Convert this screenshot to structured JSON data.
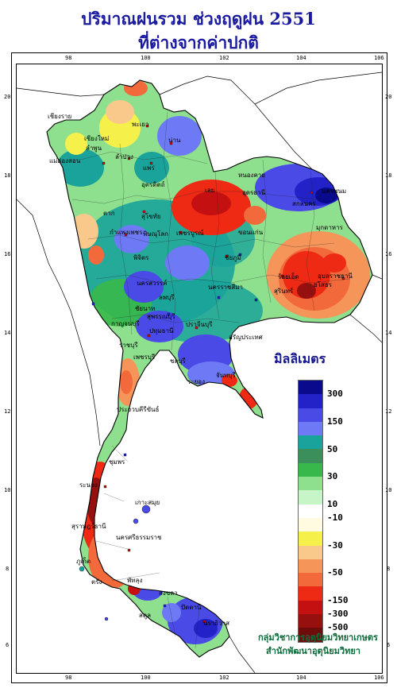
{
  "title": {
    "line1": "ปริมาณฝนรวม ช่วงฤดูฝน 2551",
    "line2": "ที่ต่างจากค่าปกติ"
  },
  "axes": {
    "lon_ticks": [
      "98",
      "100",
      "102",
      "104",
      "106"
    ],
    "lat_ticks": [
      "20",
      "18",
      "16",
      "14",
      "12",
      "10",
      "8",
      "6"
    ]
  },
  "legend": {
    "title": "มิลลิเมตร",
    "labels": [
      "300",
      "150",
      "50",
      "30",
      "10",
      "-10",
      "-30",
      "-50",
      "-150",
      "-300",
      "-500"
    ],
    "colors": [
      "#0a0a8c",
      "#2222c8",
      "#4a4ae6",
      "#6e7af5",
      "#1aa39a",
      "#3a8f5a",
      "#38b84a",
      "#8ee08e",
      "#c8f5c8",
      "#ffffff",
      "#fffbe0",
      "#f5f04a",
      "#f9c98c",
      "#f5955a",
      "#f26a3c",
      "#ee2a14",
      "#c41010",
      "#961010",
      "#6e0c0c"
    ]
  },
  "places": [
    "เชียงราย",
    "แม่ฮ่องสอน",
    "พะเยา",
    "เชียงใหม่",
    "ลำพูน",
    "น่าน",
    "ลำปาง",
    "แพร่",
    "อุตรดิตถ์",
    "ตาก",
    "สุโขทัย",
    "หนองคาย",
    "นครพนม",
    "สกลนคร",
    "มุกดาหาร",
    "อุดรธานี",
    "เลย",
    "ขอนแก่น",
    "พิษณุโลก",
    "กำแพงเพชร",
    "พิจิตร",
    "เพชรบูรณ์",
    "ชัยภูมิ",
    "นครสวรรค์",
    "ร้อยเอ็ด",
    "อุบลราชธานี",
    "ยโสธร",
    "สุรินทร์",
    "ลพบุรี",
    "นครราชสีมา",
    "ชัยนาท",
    "สุพรรณบุรี",
    "กาญจนบุรี",
    "ปทุมธานี",
    "ปราจีนบุรี",
    "อรัญประเทศ",
    "ราชบุรี",
    "ชลบุรี",
    "ระยอง",
    "จันทบุรี",
    "เพชรบุรี",
    "ประจวบคีรีขันธ์",
    "ชุมพร",
    "ระนอง",
    "เกาะสมุย",
    "สุราษฎร์ธานี",
    "นครศรีธรรมราช",
    "ภูเก็ต",
    "ตรัง",
    "พัทลุง",
    "สงขลา",
    "สตูล",
    "ปัตตานี",
    "นราธิวาส"
  ],
  "credit": {
    "line1": "กลุ่มวิชาการอุตุนิยมวิทยาเกษตร",
    "line2": "สำนักพัฒนาอุตุนิยมวิทยา"
  }
}
